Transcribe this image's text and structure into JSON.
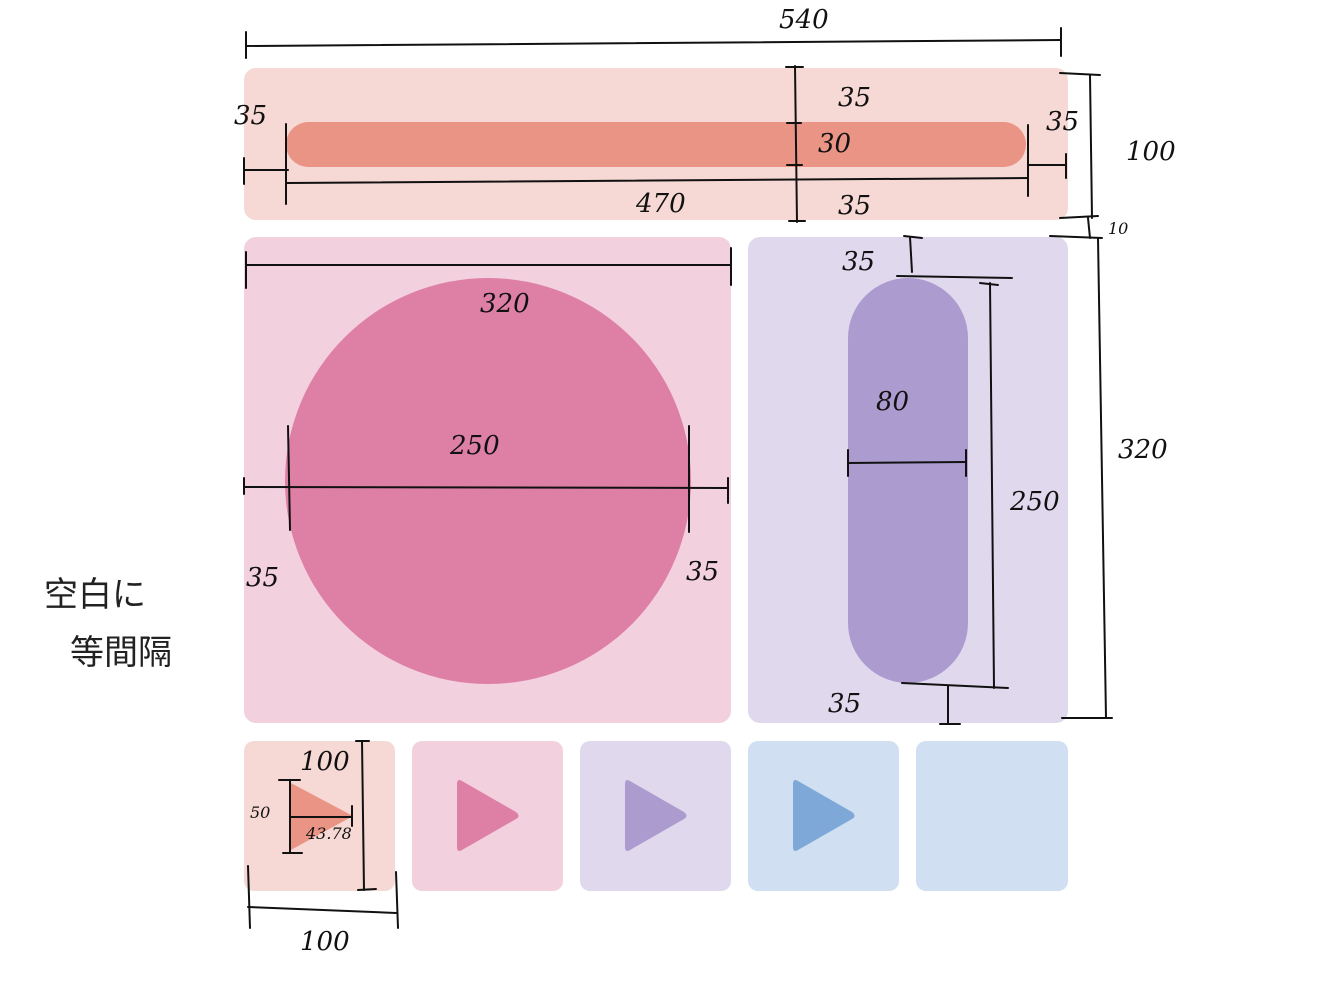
{
  "colors": {
    "coral_panel": "#F6D9D5",
    "coral_shape": "#EA9485",
    "pink_panel": "#F3D0DE",
    "pink_shape": "#DE7FA6",
    "lavender_panel": "#E0D9EE",
    "lavender_shape": "#AC9BCF",
    "blue_panel": "#D0DFF1",
    "blue_shape": "#7DA8D8"
  },
  "annotations": {
    "total_width": "540",
    "top_inner_pad_top": "35",
    "top_pad_left": "35",
    "top_pad_right": "35",
    "bar_height": "30",
    "bar_width": "470",
    "top_pad_bottom": "35",
    "top_height": "100",
    "gap": "10",
    "big_panel_width": "320",
    "circle_diameter": "250",
    "circle_pad_left": "35",
    "circle_pad_right": "35",
    "capsule_pad_top": "35",
    "capsule_width": "80",
    "capsule_height": "250",
    "capsule_pad_bottom": "35",
    "middle_height": "320",
    "tile_height": "100",
    "triangle_height": "50",
    "triangle_width": "43.78",
    "tile_width": "100"
  },
  "side_note": {
    "line1": "空白に",
    "line2": "等間隔"
  }
}
